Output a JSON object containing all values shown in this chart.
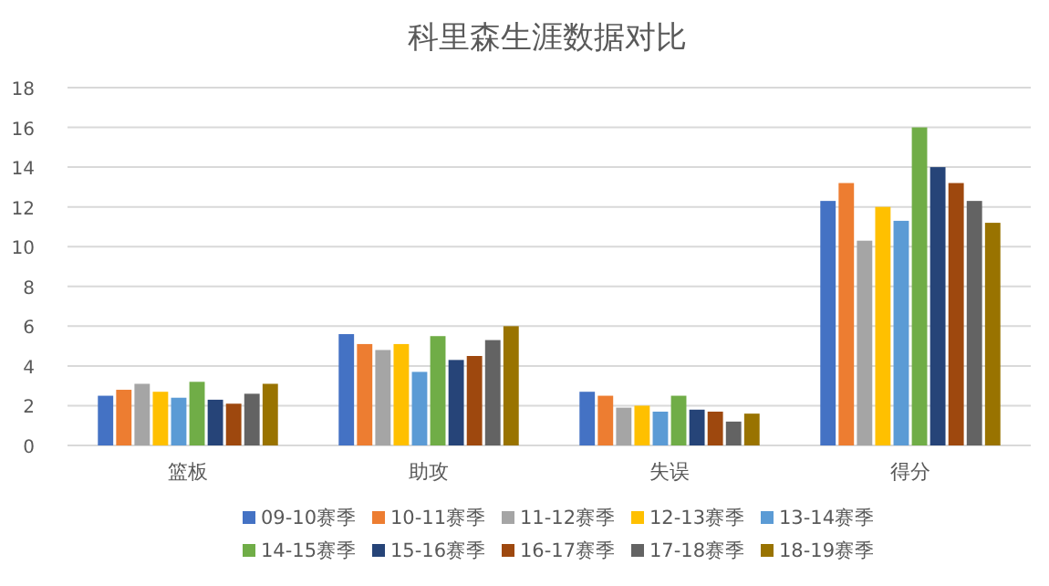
{
  "chart_data": {
    "type": "bar",
    "title": "科里森生涯数据对比",
    "categories": [
      "篮板",
      "助攻",
      "失误",
      "得分"
    ],
    "series": [
      {
        "name": "09-10赛季",
        "color": "#4472c4",
        "values": [
          2.5,
          5.6,
          2.7,
          12.3
        ]
      },
      {
        "name": "10-11赛季",
        "color": "#ed7d31",
        "values": [
          2.8,
          5.1,
          2.5,
          13.2
        ]
      },
      {
        "name": "11-12赛季",
        "color": "#a5a5a5",
        "values": [
          3.1,
          4.8,
          1.9,
          10.3
        ]
      },
      {
        "name": "12-13赛季",
        "color": "#ffc000",
        "values": [
          2.7,
          5.1,
          2.0,
          12.0
        ]
      },
      {
        "name": "13-14赛季",
        "color": "#5b9bd5",
        "values": [
          2.4,
          3.7,
          1.7,
          11.3
        ]
      },
      {
        "name": "14-15赛季",
        "color": "#70ad47",
        "values": [
          3.2,
          5.5,
          2.5,
          16.0
        ]
      },
      {
        "name": "15-16赛季",
        "color": "#264478",
        "values": [
          2.3,
          4.3,
          1.8,
          14.0
        ]
      },
      {
        "name": "16-17赛季",
        "color": "#9e480e",
        "values": [
          2.1,
          4.5,
          1.7,
          13.2
        ]
      },
      {
        "name": "17-18赛季",
        "color": "#636363",
        "values": [
          2.6,
          5.3,
          1.2,
          12.3
        ]
      },
      {
        "name": "18-19赛季",
        "color": "#997300",
        "values": [
          3.1,
          6.0,
          1.6,
          11.2
        ]
      }
    ],
    "ylim": [
      0,
      18
    ],
    "yticks": [
      0,
      2,
      4,
      6,
      8,
      10,
      12,
      14,
      16,
      18
    ],
    "grid": "y",
    "legend": "bottom"
  }
}
